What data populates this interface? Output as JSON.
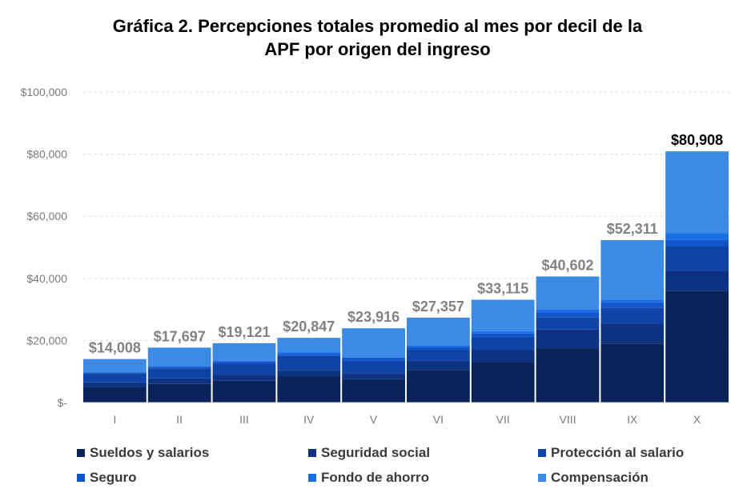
{
  "chart_data": {
    "type": "bar",
    "stacked": true,
    "title": "Gráfica 2. Percepciones totales promedio al mes por decil de la APF por origen del ingreso",
    "title_lines": [
      "Gráfica 2. Percepciones totales promedio al mes por decil de la",
      "APF por origen del ingreso"
    ],
    "xlabel": "",
    "ylabel": "",
    "ylim": [
      0,
      100000
    ],
    "yticks": [
      0,
      20000,
      40000,
      60000,
      80000,
      100000
    ],
    "ytick_labels": [
      "$-",
      "$20,000",
      "$40,000",
      "$60,000",
      "$80,000",
      "$100,000"
    ],
    "grid": true,
    "legend_position": "bottom",
    "categories": [
      "I",
      "II",
      "III",
      "IV",
      "V",
      "VI",
      "VII",
      "VIII",
      "IX",
      "X"
    ],
    "totals": [
      14008,
      17697,
      19121,
      20847,
      23916,
      27357,
      33115,
      40602,
      52311,
      80908
    ],
    "total_labels": [
      "$14,008",
      "$17,697",
      "$19,121",
      "$20,847",
      "$23,916",
      "$27,357",
      "$33,115",
      "$40,602",
      "$52,311",
      "$80,908"
    ],
    "series": [
      {
        "name": "Sueldos y salarios",
        "color": "#0a2459",
        "values": [
          5000,
          6000,
          7000,
          8500,
          7500,
          10500,
          13000,
          17500,
          19000,
          36000
        ]
      },
      {
        "name": "Seguridad social",
        "color": "#0d3282",
        "values": [
          1500,
          1800,
          2000,
          2000,
          2000,
          3000,
          4000,
          6000,
          6500,
          6500
        ]
      },
      {
        "name": "Protección al salario",
        "color": "#0e43a8",
        "values": [
          3000,
          3200,
          3500,
          4500,
          4000,
          3500,
          4000,
          4000,
          5000,
          8000
        ]
      },
      {
        "name": "Seguro",
        "color": "#1256cc",
        "values": [
          200,
          500,
          800,
          600,
          1000,
          1000,
          1200,
          1500,
          1800,
          2000
        ]
      },
      {
        "name": "Fondo de ahorro",
        "color": "#1a6fe6",
        "values": [
          0,
          300,
          0,
          500,
          0,
          300,
          800,
          900,
          800,
          2000
        ]
      },
      {
        "name": "Compensación",
        "color": "#3a8ae6",
        "values": [
          4308,
          5897,
          5821,
          4747,
          9416,
          9057,
          10115,
          10702,
          19211,
          26408
        ]
      }
    ],
    "emphasis_color": "#000000",
    "label_color": "#828282"
  }
}
